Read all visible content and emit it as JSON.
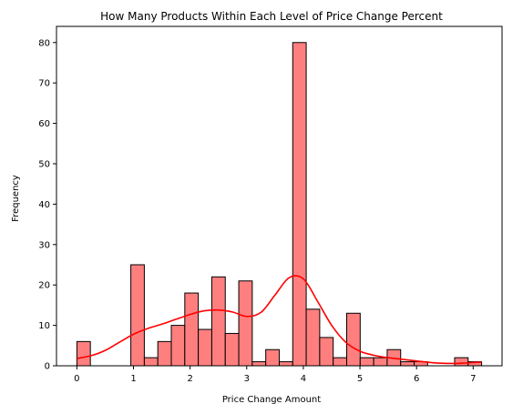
{
  "chart_data": {
    "type": "bar",
    "title": "How Many Products Within Each Level of Price Change Percent",
    "xlabel": "Price Change Amount",
    "ylabel": "Frequency",
    "xlim": [
      -0.36,
      7.51
    ],
    "ylim": [
      0,
      84
    ],
    "xticks": [
      "0",
      "1",
      "2",
      "3",
      "4",
      "5",
      "6",
      "7"
    ],
    "yticks": [
      "0",
      "10",
      "20",
      "30",
      "40",
      "50",
      "60",
      "70",
      "80"
    ],
    "grid": false,
    "bin_width": 0.2383,
    "bins": [
      {
        "start": 0.0,
        "value": 6
      },
      {
        "start": 0.2383,
        "value": 0
      },
      {
        "start": 0.4766,
        "value": 0
      },
      {
        "start": 0.7149,
        "value": 0
      },
      {
        "start": 0.9532,
        "value": 25
      },
      {
        "start": 1.1915,
        "value": 2
      },
      {
        "start": 1.4298,
        "value": 6
      },
      {
        "start": 1.6681,
        "value": 10
      },
      {
        "start": 1.9064,
        "value": 18
      },
      {
        "start": 2.1447,
        "value": 9
      },
      {
        "start": 2.383,
        "value": 22
      },
      {
        "start": 2.6213,
        "value": 8
      },
      {
        "start": 2.8596,
        "value": 21
      },
      {
        "start": 3.0979,
        "value": 1
      },
      {
        "start": 3.3362,
        "value": 4
      },
      {
        "start": 3.5745,
        "value": 1
      },
      {
        "start": 3.8128,
        "value": 80
      },
      {
        "start": 4.0511,
        "value": 14
      },
      {
        "start": 4.2894,
        "value": 7
      },
      {
        "start": 4.5277,
        "value": 2
      },
      {
        "start": 4.766,
        "value": 13
      },
      {
        "start": 5.0043,
        "value": 2
      },
      {
        "start": 5.2426,
        "value": 2
      },
      {
        "start": 5.4809,
        "value": 4
      },
      {
        "start": 5.7192,
        "value": 1
      },
      {
        "start": 5.9575,
        "value": 1
      },
      {
        "start": 6.1958,
        "value": 0
      },
      {
        "start": 6.4341,
        "value": 0
      },
      {
        "start": 6.6724,
        "value": 2
      },
      {
        "start": 6.9107,
        "value": 1
      }
    ],
    "kde": {
      "x": [
        0.0,
        0.25,
        0.5,
        0.75,
        1.0,
        1.25,
        1.5,
        1.75,
        2.0,
        2.25,
        2.5,
        2.75,
        3.0,
        3.25,
        3.5,
        3.75,
        4.0,
        4.25,
        4.5,
        4.75,
        5.0,
        5.25,
        5.5,
        5.75,
        6.0,
        6.25,
        6.5,
        6.75,
        7.0,
        7.15
      ],
      "y": [
        1.8,
        2.5,
        3.8,
        5.8,
        7.8,
        9.2,
        10.3,
        11.5,
        12.7,
        13.6,
        13.8,
        13.3,
        12.2,
        13.2,
        17.5,
        21.8,
        21.5,
        16.0,
        10.0,
        5.8,
        3.6,
        2.6,
        2.0,
        1.6,
        1.2,
        0.8,
        0.6,
        0.6,
        0.8,
        0.9
      ]
    },
    "colors": {
      "bar_fill": "#ff7f7f",
      "bar_edge": "#000000",
      "kde_line": "#ff0000"
    }
  }
}
